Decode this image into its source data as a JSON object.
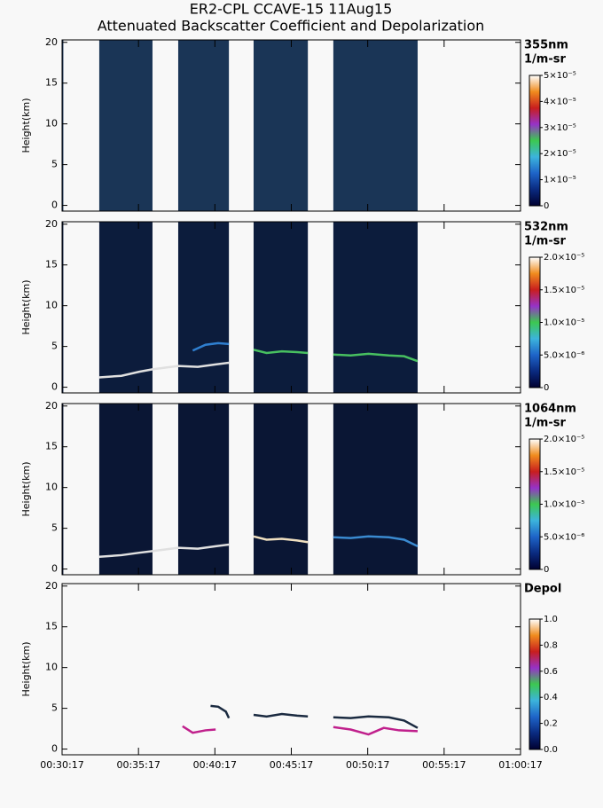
{
  "chart_data": {
    "type": "curtain",
    "title": "ER2-CPL CCAVE-15 11Aug15",
    "subtitle": "Attenuated Backscatter Coefficient and Depolarization",
    "ylabel": "Height(km)",
    "xlim": [
      1817,
      3617
    ],
    "xticks": [
      {
        "value": 1817,
        "label": "00:30:17"
      },
      {
        "value": 2117,
        "label": "00:35:17"
      },
      {
        "value": 2417,
        "label": "00:40:17"
      },
      {
        "value": 2717,
        "label": "00:45:17"
      },
      {
        "value": 3017,
        "label": "00:50:17"
      },
      {
        "value": 3317,
        "label": "00:55:17"
      },
      {
        "value": 3617,
        "label": "01:00:17"
      }
    ],
    "ylim": [
      -0.7,
      20.3
    ],
    "yticks": [
      0,
      5,
      10,
      15,
      20
    ],
    "colormap": [
      "#000030",
      "#0a2a80",
      "#1e64c8",
      "#3cb4dc",
      "#3cc850",
      "#9632c8",
      "#c81e1e",
      "#f08c1e",
      "#ffffff"
    ],
    "panels": [
      {
        "label": "355nm",
        "units": "1/m-sr",
        "fill": "#1a3556",
        "segments": [
          [
            1817,
            1822
          ],
          [
            1963,
            2172
          ],
          [
            2273,
            2472
          ],
          [
            2569,
            2782
          ],
          [
            2882,
            3213
          ]
        ],
        "cbar_lim": [
          0,
          5e-05
        ],
        "cbar_ticks": [
          {
            "value": 0,
            "label": "0"
          },
          {
            "value": 1e-05,
            "label": "1×10⁻⁵"
          },
          {
            "value": 2e-05,
            "label": "2×10⁻⁵"
          },
          {
            "value": 3e-05,
            "label": "3×10⁻⁵"
          },
          {
            "value": 4e-05,
            "label": "4×10⁻⁵"
          },
          {
            "value": 5e-05,
            "label": "5×10⁻⁵"
          }
        ],
        "lines": []
      },
      {
        "label": "532nm",
        "units": "1/m-sr",
        "fill": "#0c1c3c",
        "segments": [
          [
            1817,
            1822
          ],
          [
            1963,
            2172
          ],
          [
            2273,
            2472
          ],
          [
            2569,
            2782
          ],
          [
            2882,
            3213
          ]
        ],
        "cbar_lim": [
          0,
          2e-05
        ],
        "cbar_ticks": [
          {
            "value": 0,
            "label": "0"
          },
          {
            "value": 5e-06,
            "label": "5.0×10⁻⁶"
          },
          {
            "value": 1e-05,
            "label": "1.0×10⁻⁵"
          },
          {
            "value": 1.5e-05,
            "label": "1.5×10⁻⁵"
          },
          {
            "value": 2e-05,
            "label": "2.0×10⁻⁵"
          }
        ],
        "lines": [
          {
            "color": "#e0e0e0",
            "x": [
              1963,
              2050,
              2120,
              2172,
              2273,
              2350,
              2420,
              2472
            ],
            "y": [
              1.2,
              1.4,
              1.9,
              2.2,
              2.6,
              2.5,
              2.8,
              3.0
            ]
          },
          {
            "color": "#2f7fd0",
            "x": [
              2330,
              2380,
              2430,
              2472
            ],
            "y": [
              4.5,
              5.2,
              5.4,
              5.3
            ]
          },
          {
            "color": "#48c060",
            "x": [
              2569,
              2620,
              2680,
              2740,
              2782
            ],
            "y": [
              4.6,
              4.2,
              4.4,
              4.3,
              4.2
            ]
          },
          {
            "color": "#48c060",
            "x": [
              2882,
              2950,
              3020,
              3100,
              3160,
              3213
            ],
            "y": [
              4.0,
              3.9,
              4.1,
              3.9,
              3.8,
              3.2
            ]
          }
        ]
      },
      {
        "label": "1064nm",
        "units": "1/m-sr",
        "fill": "#0a1634",
        "segments": [
          [
            1817,
            1822
          ],
          [
            1963,
            2172
          ],
          [
            2273,
            2472
          ],
          [
            2569,
            2782
          ],
          [
            2882,
            3213
          ]
        ],
        "cbar_lim": [
          0,
          2e-05
        ],
        "cbar_ticks": [
          {
            "value": 0,
            "label": "0"
          },
          {
            "value": 5e-06,
            "label": "5.0×10⁻⁶"
          },
          {
            "value": 1e-05,
            "label": "1.0×10⁻⁵"
          },
          {
            "value": 1.5e-05,
            "label": "1.5×10⁻⁵"
          },
          {
            "value": 2e-05,
            "label": "2.0×10⁻⁵"
          }
        ],
        "lines": [
          {
            "color": "#e0e0e0",
            "x": [
              1963,
              2050,
              2120,
              2172,
              2273,
              2350,
              2420,
              2472
            ],
            "y": [
              1.5,
              1.7,
              2.0,
              2.2,
              2.6,
              2.5,
              2.8,
              3.0
            ]
          },
          {
            "color": "#f0e0c0",
            "x": [
              2569,
              2620,
              2680,
              2740,
              2782
            ],
            "y": [
              4.0,
              3.6,
              3.7,
              3.5,
              3.3
            ]
          },
          {
            "color": "#3a8ad0",
            "x": [
              2882,
              2950,
              3020,
              3100,
              3160,
              3213
            ],
            "y": [
              3.9,
              3.8,
              4.0,
              3.9,
              3.6,
              2.8
            ]
          }
        ]
      },
      {
        "label": "Depol",
        "fill": "#f8f8f8",
        "segments": [],
        "cbar_lim": [
          0,
          1
        ],
        "cbar_ticks": [
          {
            "value": 0,
            "label": "0.0"
          },
          {
            "value": 0.2,
            "label": "0.2"
          },
          {
            "value": 0.4,
            "label": "0.4"
          },
          {
            "value": 0.6,
            "label": "0.6"
          },
          {
            "value": 0.8,
            "label": "0.8"
          },
          {
            "value": 1,
            "label": "1.0"
          }
        ],
        "lines": [
          {
            "color": "#1a2a40",
            "x": [
              2400,
              2430,
              2460,
              2472
            ],
            "y": [
              5.3,
              5.2,
              4.6,
              3.8
            ]
          },
          {
            "color": "#1a2a40",
            "x": [
              2569,
              2620,
              2680,
              2740,
              2782
            ],
            "y": [
              4.2,
              4.0,
              4.3,
              4.1,
              4.0
            ]
          },
          {
            "color": "#1a2a40",
            "x": [
              2882,
              2950,
              3020,
              3100,
              3160,
              3213
            ],
            "y": [
              3.9,
              3.8,
              4.0,
              3.9,
              3.5,
              2.6
            ]
          },
          {
            "color": "#c0208c",
            "x": [
              2290,
              2330,
              2380,
              2420
            ],
            "y": [
              2.8,
              2.0,
              2.3,
              2.4
            ]
          },
          {
            "color": "#c0208c",
            "x": [
              2882,
              2950,
              3020,
              3080,
              3140,
              3213
            ],
            "y": [
              2.7,
              2.4,
              1.8,
              2.6,
              2.3,
              2.2
            ]
          }
        ]
      }
    ]
  }
}
